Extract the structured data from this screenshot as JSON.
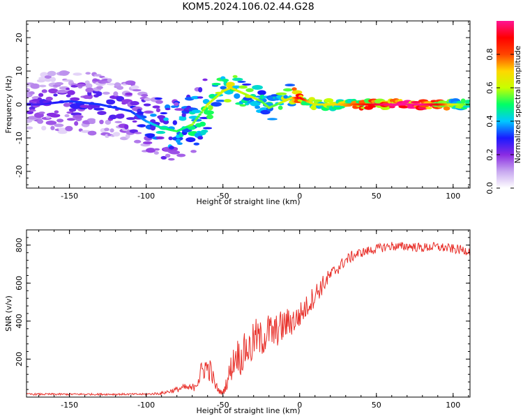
{
  "title": "KOM5.2024.106.02.44.G28",
  "colors": {
    "snr_line": "#e8302a",
    "colormap": [
      "#ffffff",
      "#c8a8f0",
      "#8a2be2",
      "#1a1aff",
      "#00c8ff",
      "#00ff66",
      "#c8ff00",
      "#ffd700",
      "#ff4500",
      "#ff0000",
      "#ff1493"
    ]
  },
  "chart_data": [
    {
      "type": "heatmap",
      "name": "spectrogram",
      "title": "KOM5.2024.106.02.44.G28",
      "xlabel": "Height of straight line (km)",
      "ylabel": "Frequency (Hz)",
      "xlim": [
        -178,
        111
      ],
      "ylim": [
        -25,
        25
      ],
      "xticks": [
        -150,
        -100,
        -50,
        0,
        50,
        100
      ],
      "yticks": [
        -20,
        -10,
        0,
        10,
        20
      ],
      "colorbar": {
        "label": "Normalized spectral amplitude",
        "range": [
          0,
          1
        ],
        "ticks": [
          "0.0",
          "0.2",
          "0.4",
          "0.6",
          "0.8"
        ]
      },
      "ridge": {
        "x": [
          -170,
          -150,
          -130,
          -110,
          -100,
          -90,
          -80,
          -75,
          -70,
          -65,
          -60,
          -55,
          -50,
          -45,
          -40,
          -35,
          -30,
          -25,
          -20,
          -15,
          -10,
          -5,
          0,
          5,
          10,
          20,
          30,
          40,
          50,
          60,
          70,
          80,
          90,
          100,
          110
        ],
        "y": [
          0,
          1,
          0,
          -2,
          -5,
          -7,
          -8,
          -7,
          -6,
          -3,
          0,
          2,
          4,
          5,
          4,
          3,
          2,
          1,
          -1,
          0,
          1,
          2,
          2,
          1,
          0,
          0,
          0,
          0,
          0,
          0,
          0,
          0,
          0,
          0,
          0
        ],
        "amplitude": [
          0.25,
          0.3,
          0.3,
          0.3,
          0.35,
          0.45,
          0.5,
          0.45,
          0.55,
          0.5,
          0.6,
          0.55,
          0.6,
          0.65,
          0.6,
          0.55,
          0.6,
          0.5,
          0.55,
          0.5,
          0.6,
          0.65,
          0.9,
          0.7,
          0.6,
          0.65,
          0.7,
          0.8,
          0.9,
          0.95,
          1.0,
          0.95,
          0.85,
          0.6,
          0.5
        ]
      }
    },
    {
      "type": "line",
      "name": "snr",
      "xlabel": "Height of straight line (km)",
      "ylabel": "SNR (v/v)",
      "xlim": [
        -178,
        111
      ],
      "ylim": [
        0,
        880
      ],
      "xticks": [
        -150,
        -100,
        -50,
        0,
        50,
        100
      ],
      "yticks": [
        200,
        400,
        600,
        800
      ],
      "series": [
        {
          "x": [
            -178,
            -160,
            -140,
            -120,
            -100,
            -90,
            -80,
            -75,
            -70,
            -65,
            -62,
            -58,
            -55,
            -52,
            -50,
            -47,
            -44,
            -41,
            -38,
            -35,
            -32,
            -29,
            -26,
            -23,
            -20,
            -17,
            -14,
            -11,
            -8,
            -5,
            -2,
            0,
            5,
            10,
            15,
            20,
            25,
            30,
            35,
            40,
            45,
            50,
            55,
            60,
            65,
            70,
            75,
            80,
            85,
            90,
            95,
            100,
            105,
            111
          ],
          "values": [
            15,
            15,
            15,
            15,
            15,
            20,
            40,
            50,
            45,
            110,
            160,
            140,
            60,
            30,
            20,
            90,
            170,
            230,
            200,
            260,
            250,
            320,
            300,
            320,
            350,
            330,
            360,
            370,
            390,
            400,
            410,
            430,
            480,
            540,
            590,
            640,
            680,
            720,
            745,
            760,
            770,
            780,
            790,
            795,
            790,
            795,
            790,
            785,
            790,
            790,
            785,
            780,
            775,
            770
          ],
          "noise": [
            5,
            5,
            5,
            5,
            5,
            8,
            15,
            20,
            20,
            60,
            70,
            60,
            30,
            15,
            10,
            50,
            80,
            90,
            90,
            100,
            100,
            100,
            100,
            100,
            100,
            90,
            90,
            90,
            80,
            80,
            70,
            70,
            60,
            60,
            50,
            40,
            35,
            30,
            30,
            25,
            25,
            25,
            25,
            25,
            25,
            25,
            25,
            25,
            25,
            25,
            25,
            25,
            25,
            25
          ]
        }
      ]
    }
  ]
}
